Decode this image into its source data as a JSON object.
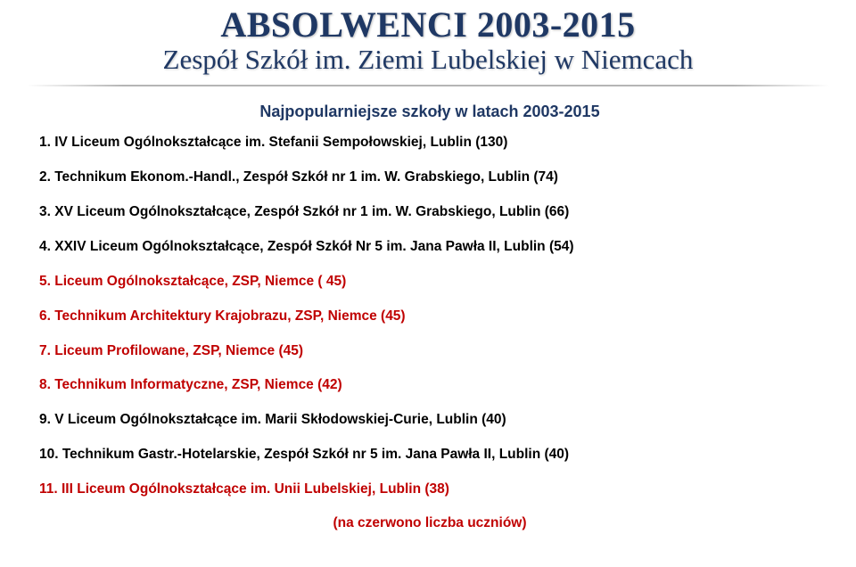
{
  "header": {
    "title_main": "ABSOLWENCI 2003-2015",
    "title_sub": "Zespół Szkół im. Ziemi Lubelskiej w Niemcach"
  },
  "list": {
    "title": "Najpopularniejsze szkoły w latach 2003-2015",
    "items": [
      {
        "num": "1.",
        "text": "IV Liceum Ogólnokształcące im. Stefanii Sempołowskiej, Lublin (130)",
        "highlight": false
      },
      {
        "num": "2.",
        "text": "Technikum Ekonom.-Handl., Zespół Szkół nr 1 im. W. Grabskiego, Lublin (74)",
        "highlight": false
      },
      {
        "num": "3.",
        "text": "XV Liceum Ogólnokształcące, Zespół Szkół nr 1 im. W. Grabskiego, Lublin (66)",
        "highlight": false
      },
      {
        "num": "4.",
        "text": "XXIV Liceum Ogólnokształcące, Zespół Szkół Nr 5 im. Jana Pawła II, Lublin (54)",
        "highlight": false
      },
      {
        "num": "5.",
        "text": "Liceum Ogólnokształcące, ZSP, Niemce ( 45)",
        "highlight": true
      },
      {
        "num": "6.",
        "text": "Technikum Architektury Krajobrazu, ZSP, Niemce (45)",
        "highlight": true
      },
      {
        "num": "7.",
        "text": "Liceum Profilowane, ZSP, Niemce (45)",
        "highlight": true
      },
      {
        "num": "8.",
        "text": "Technikum Informatyczne, ZSP, Niemce (42)",
        "highlight": true
      },
      {
        "num": "9.",
        "text": "V Liceum Ogólnokształcące  im. Marii Skłodowskiej-Curie, Lublin (40)",
        "highlight": false
      },
      {
        "num": "10.",
        "text": "Technikum Gastr.-Hotelarskie, Zespół Szkół nr 5 im. Jana Pawła II, Lublin (40)",
        "highlight": false
      },
      {
        "num": "11.",
        "text": "III Liceum Ogólnokształcące im. Unii Lubelskiej, Lublin (38)",
        "highlight": true
      }
    ],
    "footnote": "(na czerwono liczba uczniów)"
  },
  "colors": {
    "title": "#1f3864",
    "list_title": "#1f3864",
    "item_default": "#000000",
    "highlight": "#c00000",
    "background": "#ffffff"
  }
}
